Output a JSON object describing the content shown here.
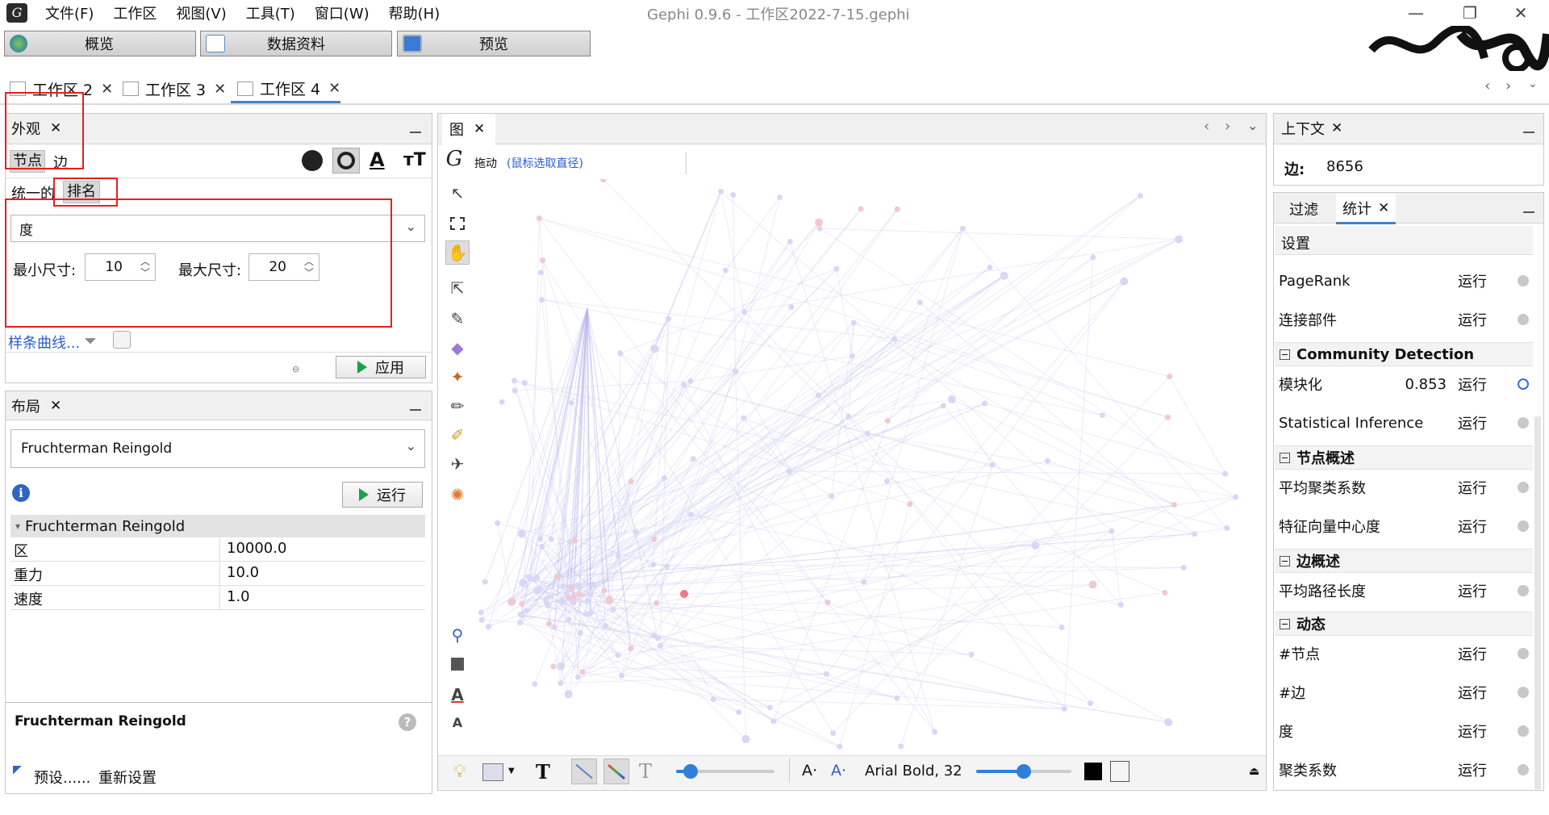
{
  "menu": [
    "文件(F)",
    "工作区",
    "视图(V)",
    "工具(T)",
    "窗口(W)",
    "帮助(H)"
  ],
  "app_title": "Gephi 0.9.6 - 工作区2022-7-15.gephi",
  "modes": [
    "概览",
    "数据资料",
    "预览"
  ],
  "workspace_tabs": [
    "工作区 2",
    "工作区 3",
    "工作区 4"
  ],
  "appearance": {
    "title": "外观",
    "node_tab": "节点",
    "edge_tab": "边",
    "unified_tab": "统一的",
    "ranking_tab": "排名",
    "attribute": "度",
    "min_label": "最小尺寸:",
    "min_value": "10",
    "max_label": "最大尺寸:",
    "max_value": "20",
    "spline_link": "样条曲线...",
    "apply_button": "应用"
  },
  "layout": {
    "title": "布局",
    "algorithm": "Fruchterman Reingold",
    "run_button": "运行",
    "section": "Fruchterman Reingold",
    "props": [
      {
        "k": "区",
        "v": "10000.0"
      },
      {
        "k": "重力",
        "v": "10.0"
      },
      {
        "k": "速度",
        "v": "1.0"
      }
    ],
    "desc_title": "Fruchterman Reingold",
    "presets": "预设......",
    "reset": "重新设置"
  },
  "graph": {
    "tab": "图",
    "drag_label": "拖动",
    "drag_hint": "(鼠标选取直径)",
    "font_label": "Arial Bold, 32",
    "edge_slider": 0.15,
    "label_slider": 0.5
  },
  "context": {
    "title": "上下文",
    "edges_label": "边:",
    "edges_value": "8656"
  },
  "stats": {
    "filter_tab": "过滤",
    "stats_tab": "统计",
    "settings": "设置",
    "run": "运行",
    "rows_top": [
      "PageRank",
      "连接部件"
    ],
    "sec_community": "Community Detection",
    "modularity": "模块化",
    "modularity_value": "0.853",
    "stat_inference": "Statistical Inference",
    "sec_node": "节点概述",
    "node_rows": [
      "平均聚类系数",
      "特征向量中心度"
    ],
    "sec_edge": "边概述",
    "edge_rows": [
      "平均路径长度"
    ],
    "sec_dynamic": "动态",
    "dynamic_rows": [
      "#节点",
      "#边",
      "度",
      "聚类系数"
    ]
  }
}
